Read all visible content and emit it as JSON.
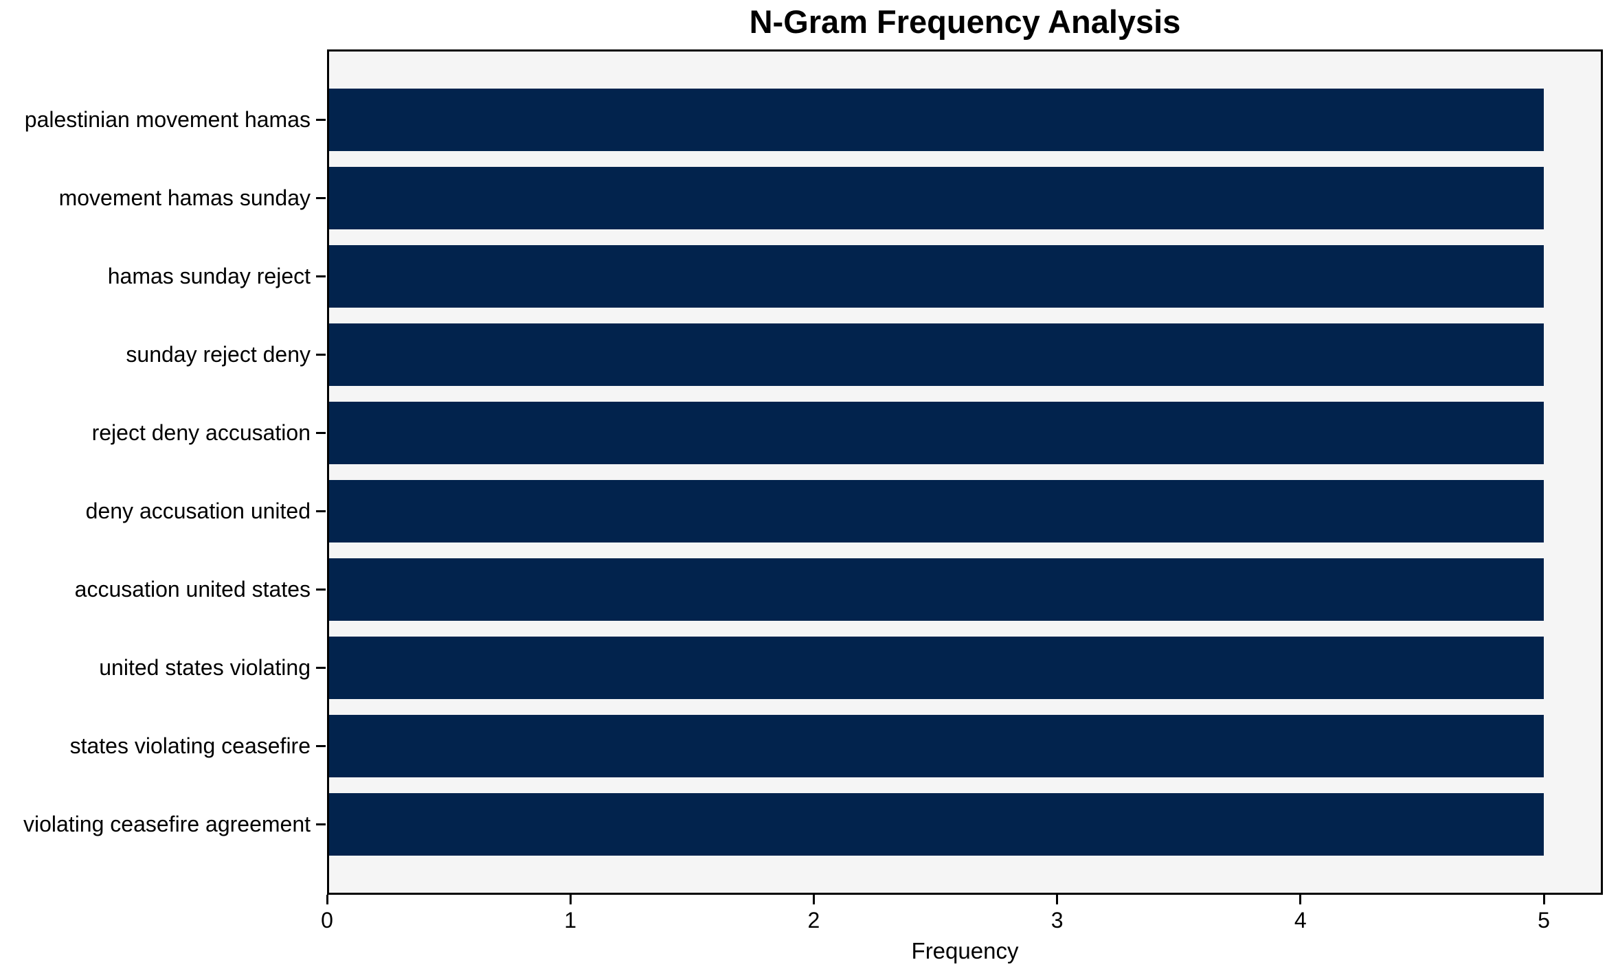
{
  "chart_data": {
    "type": "bar",
    "orientation": "horizontal",
    "title": "N-Gram Frequency Analysis",
    "xlabel": "Frequency",
    "ylabel": "",
    "categories": [
      "palestinian movement hamas",
      "movement hamas sunday",
      "hamas sunday reject",
      "sunday reject deny",
      "reject deny accusation",
      "deny accusation united",
      "accusation united states",
      "united states violating",
      "states violating ceasefire",
      "violating ceasefire agreement"
    ],
    "values": [
      5,
      5,
      5,
      5,
      5,
      5,
      5,
      5,
      5,
      5
    ],
    "xticks": [
      0,
      1,
      2,
      3,
      4,
      5
    ],
    "xlim": [
      0,
      5.25
    ],
    "grid": false,
    "legend_position": "none",
    "colors": {
      "bar": "#02234d",
      "plot_background": "#f5f5f5",
      "figure_background": "#ffffff",
      "axis": "#000000",
      "text": "#000000"
    }
  }
}
